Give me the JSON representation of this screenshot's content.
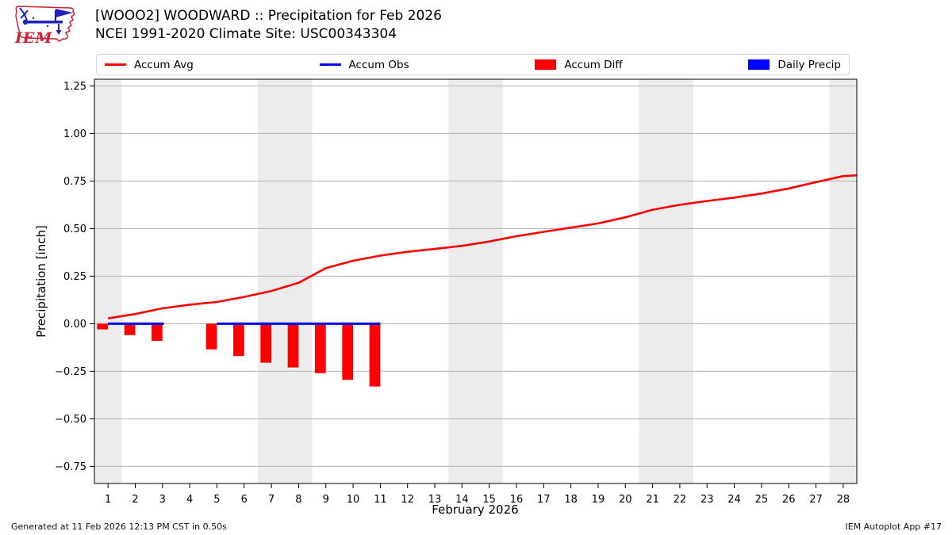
{
  "header": {
    "title_line1": "[WOOO2] WOODWARD :: Precipitation for Feb 2026",
    "title_line2": "NCEI 1991-2020 Climate Site: USC00343304",
    "logo_text": "IEM"
  },
  "legend": {
    "items": [
      {
        "label": "Accum Avg",
        "swatch": "line",
        "color": "#ff0000"
      },
      {
        "label": "Accum Obs",
        "swatch": "line",
        "color": "#0000ff"
      },
      {
        "label": "Accum Diff",
        "swatch": "patch",
        "color": "#ff0000"
      },
      {
        "label": "Daily Precip",
        "swatch": "patch",
        "color": "#0000ff"
      }
    ]
  },
  "footer": {
    "left": "Generated at 11 Feb 2026 12:13 PM CST in 0.50s",
    "right": "IEM Autoplot App #17"
  },
  "colors": {
    "accent_red": "#ff0000",
    "accent_blue": "#0000ff",
    "weekend_band": "#ececec",
    "gridline": "#b0b0b0",
    "frame": "#000000",
    "logo_red": "#cc2233",
    "logo_blue": "#2222bb"
  },
  "chart_data": {
    "type": "line",
    "title": "[WOOO2] WOODWARD :: Precipitation for Feb 2026",
    "subtitle": "NCEI 1991-2020 Climate Site: USC00343304",
    "xlabel": "February 2026",
    "ylabel": "Precipitation [inch]",
    "xlim": [
      0.5,
      28.5
    ],
    "ylim": [
      -0.84,
      1.285
    ],
    "grid": "horizontal-only",
    "legend_position": "top",
    "x_ticks": [
      1,
      2,
      3,
      4,
      5,
      6,
      7,
      8,
      9,
      10,
      11,
      12,
      13,
      14,
      15,
      16,
      17,
      18,
      19,
      20,
      21,
      22,
      23,
      24,
      25,
      26,
      27,
      28
    ],
    "y_ticks": [
      -0.75,
      -0.5,
      -0.25,
      0.0,
      0.25,
      0.5,
      0.75,
      1.0,
      1.25
    ],
    "weekend_bands": [
      [
        0.5,
        1.5
      ],
      [
        6.5,
        8.5
      ],
      [
        13.5,
        15.5
      ],
      [
        20.5,
        22.5
      ],
      [
        27.5,
        28.5
      ]
    ],
    "bar_width_days": 0.4,
    "series": [
      {
        "name": "Accum Diff",
        "type": "bar",
        "color": "#ff0000",
        "x": [
          1,
          2,
          3,
          5,
          6,
          7,
          8,
          9,
          10,
          11
        ],
        "y": [
          -0.03,
          -0.06,
          -0.09,
          -0.135,
          -0.17,
          -0.205,
          -0.23,
          -0.26,
          -0.295,
          -0.33
        ]
      },
      {
        "name": "Daily Precip",
        "type": "bar",
        "color": "#0000ff",
        "x": [],
        "y": []
      },
      {
        "name": "Accum Avg",
        "type": "line",
        "color": "#ff0000",
        "line_width": 2.6,
        "x": [
          1,
          2,
          3,
          4,
          5,
          6,
          7,
          8,
          9,
          10,
          11,
          12,
          13,
          14,
          15,
          16,
          17,
          18,
          19,
          20,
          21,
          22,
          23,
          24,
          25,
          26,
          27,
          28,
          28.5
        ],
        "y": [
          0.028,
          0.051,
          0.081,
          0.1,
          0.114,
          0.141,
          0.172,
          0.215,
          0.292,
          0.331,
          0.358,
          0.378,
          0.393,
          0.409,
          0.432,
          0.46,
          0.483,
          0.505,
          0.527,
          0.559,
          0.599,
          0.625,
          0.645,
          0.663,
          0.684,
          0.711,
          0.744,
          0.776,
          0.78
        ]
      },
      {
        "name": "Accum Obs",
        "type": "line",
        "color": "#0000ff",
        "line_width": 3,
        "segments": [
          {
            "x": [
              1,
              3.05
            ],
            "y": [
              0.0,
              0.0
            ]
          },
          {
            "x": [
              5.0,
              11.0
            ],
            "y": [
              0.0,
              0.0
            ]
          }
        ]
      }
    ]
  }
}
